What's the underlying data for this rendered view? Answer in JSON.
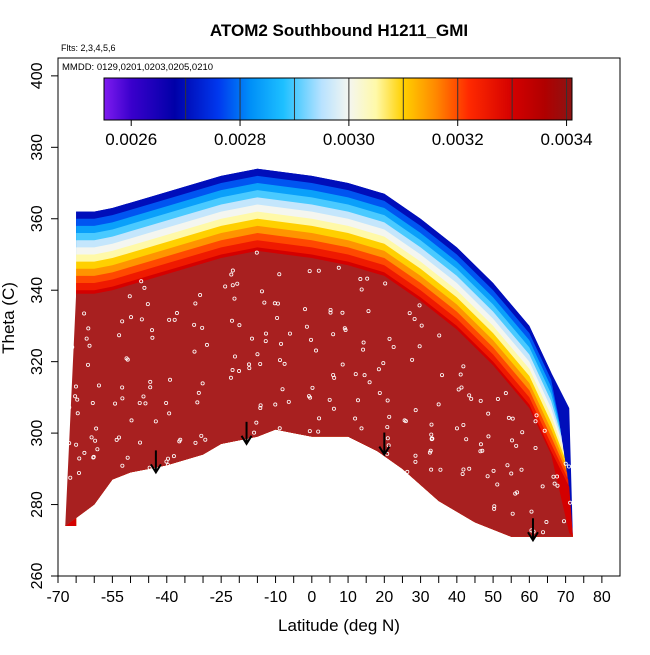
{
  "chart_data": {
    "type": "heatmap",
    "title": "ATOM2 Southbound H1211_GMI",
    "annotation_flights": "Flts: 2,3,4,5,6",
    "annotation_dates": "MMDD: 0129,0201,0203,0205,0210",
    "xlabel": "Latitude (deg N)",
    "ylabel": "Theta (C)",
    "xlim": [
      -70,
      85
    ],
    "ylim": [
      260,
      405
    ],
    "x_ticks": [
      -70,
      -55,
      -40,
      -25,
      -10,
      0,
      10,
      20,
      30,
      40,
      50,
      60,
      70,
      80
    ],
    "x_minor_ticks": [
      -65,
      -60,
      -50,
      -45,
      -35,
      -30,
      -20,
      -15,
      -5,
      5,
      15,
      25,
      35,
      45,
      55,
      65,
      75
    ],
    "y_ticks": [
      260,
      280,
      300,
      320,
      340,
      360,
      380,
      400
    ],
    "colorbar": {
      "min": 0.00255,
      "max": 0.00341,
      "tick_values": [
        0.0026,
        0.0028,
        0.003,
        0.0032,
        0.0034
      ],
      "tick_labels": [
        "0.0026",
        "0.0028",
        "0.0030",
        "0.0032",
        "0.0034"
      ],
      "boundaries": [
        0.0027,
        0.0028,
        0.0029,
        0.003,
        0.0031,
        0.0032,
        0.0033,
        0.0034
      ],
      "stops": [
        {
          "value": 0.00255,
          "color": "#7f1cf0"
        },
        {
          "value": 0.0026,
          "color": "#3a00cc"
        },
        {
          "value": 0.00268,
          "color": "#0000a8"
        },
        {
          "value": 0.00276,
          "color": "#0038ee"
        },
        {
          "value": 0.00282,
          "color": "#0090f8"
        },
        {
          "value": 0.00288,
          "color": "#1ec0ff"
        },
        {
          "value": 0.00295,
          "color": "#b8e2ff"
        },
        {
          "value": 0.003,
          "color": "#f4f6f0"
        },
        {
          "value": 0.00305,
          "color": "#fff9a8"
        },
        {
          "value": 0.0031,
          "color": "#ffd000"
        },
        {
          "value": 0.00316,
          "color": "#ff8800"
        },
        {
          "value": 0.00322,
          "color": "#ff2a00"
        },
        {
          "value": 0.0033,
          "color": "#d40000"
        },
        {
          "value": 0.00336,
          "color": "#b00000"
        },
        {
          "value": 0.00341,
          "color": "#8c1414"
        }
      ]
    },
    "bottom_boundary": [
      [
        -68,
        274
      ],
      [
        -60,
        280
      ],
      [
        -55,
        287
      ],
      [
        -50,
        289
      ],
      [
        -45,
        290
      ],
      [
        -40,
        291
      ],
      [
        -30,
        294
      ],
      [
        -25,
        297
      ],
      [
        -15,
        299
      ],
      [
        -10,
        301
      ],
      [
        -5,
        300
      ],
      [
        0,
        299
      ],
      [
        10,
        299
      ],
      [
        18,
        295
      ],
      [
        25,
        290
      ],
      [
        35,
        281
      ],
      [
        45,
        275
      ],
      [
        55,
        271
      ],
      [
        72,
        271
      ]
    ],
    "contour_top": [
      [
        -65,
        340
      ],
      [
        -60,
        340
      ],
      [
        -55,
        341
      ],
      [
        -45,
        344
      ],
      [
        -35,
        347
      ],
      [
        -25,
        350
      ],
      [
        -15,
        352
      ],
      [
        0,
        350
      ],
      [
        10,
        348
      ],
      [
        20,
        345
      ],
      [
        30,
        338
      ],
      [
        40,
        330
      ],
      [
        50,
        320
      ],
      [
        60,
        308
      ],
      [
        66,
        295
      ]
    ],
    "contour_layers": [
      {
        "offset": 0,
        "value": 0.0033
      },
      {
        "offset": 2,
        "value": 0.00325
      },
      {
        "offset": 4,
        "value": 0.0032
      },
      {
        "offset": 6,
        "value": 0.00315
      },
      {
        "offset": 8,
        "value": 0.0031
      },
      {
        "offset": 10,
        "value": 0.00305
      },
      {
        "offset": 12,
        "value": 0.003
      },
      {
        "offset": 14,
        "value": 0.00296
      },
      {
        "offset": 16,
        "value": 0.0029
      },
      {
        "offset": 18,
        "value": 0.00284
      },
      {
        "offset": 20,
        "value": 0.00278
      },
      {
        "offset": 22,
        "value": 0.0027
      }
    ],
    "data_region_color": "#a82020",
    "tropopause_arrows": [
      {
        "lat": -43,
        "theta": 289
      },
      {
        "lat": -18,
        "theta": 297
      },
      {
        "lat": 20,
        "theta": 294
      },
      {
        "lat": 61,
        "theta": 270
      }
    ],
    "sample_clusters": [
      {
        "lat": -65,
        "theta_range": [
          285,
          335
        ],
        "count": 14
      },
      {
        "lat": -60,
        "theta_range": [
          282,
          330
        ],
        "count": 12
      },
      {
        "lat": -52,
        "theta_range": [
          286,
          340
        ],
        "count": 14
      },
      {
        "lat": -45,
        "theta_range": [
          289,
          343
        ],
        "count": 14
      },
      {
        "lat": -38,
        "theta_range": [
          291,
          340
        ],
        "count": 12
      },
      {
        "lat": -30,
        "theta_range": [
          294,
          342
        ],
        "count": 12
      },
      {
        "lat": -22,
        "theta_range": [
          297,
          346
        ],
        "count": 12
      },
      {
        "lat": -15,
        "theta_range": [
          299,
          351
        ],
        "count": 14
      },
      {
        "lat": -8,
        "theta_range": [
          300,
          349
        ],
        "count": 12
      },
      {
        "lat": 0,
        "theta_range": [
          299,
          348
        ],
        "count": 12
      },
      {
        "lat": 7,
        "theta_range": [
          299,
          348
        ],
        "count": 12
      },
      {
        "lat": 14,
        "theta_range": [
          297,
          347
        ],
        "count": 12
      },
      {
        "lat": 21,
        "theta_range": [
          294,
          343
        ],
        "count": 12
      },
      {
        "lat": 28,
        "theta_range": [
          289,
          336
        ],
        "count": 12
      },
      {
        "lat": 35,
        "theta_range": [
          283,
          330
        ],
        "count": 12
      },
      {
        "lat": 42,
        "theta_range": [
          278,
          325
        ],
        "count": 12
      },
      {
        "lat": 49,
        "theta_range": [
          276,
          318
        ],
        "count": 12
      },
      {
        "lat": 56,
        "theta_range": [
          274,
          312
        ],
        "count": 12
      },
      {
        "lat": 63,
        "theta_range": [
          272,
          305
        ],
        "count": 10
      },
      {
        "lat": 69,
        "theta_range": [
          272,
          300
        ],
        "count": 8
      }
    ]
  }
}
